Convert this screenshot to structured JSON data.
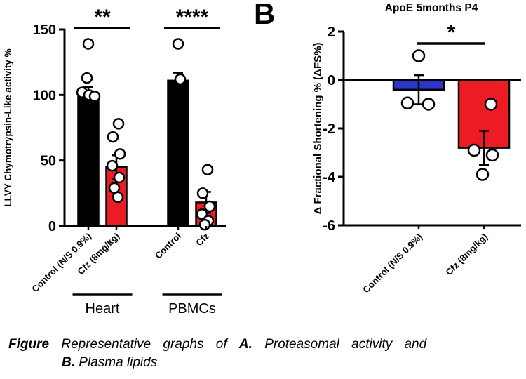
{
  "panel_b_label": "B",
  "colors": {
    "bar_black": "#000000",
    "bar_red": "#ED1C24",
    "bar_blue": "#2B35C8",
    "point_fill": "#FFFFFF",
    "axis": "#000000"
  },
  "caption": {
    "figure_label": "Figure",
    "text1": " Representative graphs of ",
    "a_label": "A.",
    "text2": " Proteasomal activity and",
    "b_label": "B.",
    "text3": " Plasma lipids"
  },
  "chart_data": [
    {
      "id": "proteasomal-activity",
      "type": "bar",
      "title": "",
      "ylabel": "LLVY Chymotrypsin-Like activity %",
      "ylim": [
        0,
        150
      ],
      "yticks": [
        150,
        100,
        50,
        0
      ],
      "categories": [
        "Control (N/S 0.9%)",
        "Cfz (8mg/kg)",
        "Control",
        "Cfz"
      ],
      "values": [
        101,
        45,
        111,
        18
      ],
      "errors": [
        5,
        9,
        6,
        8
      ],
      "bar_colors": [
        "#000000",
        "#ED1C24",
        "#000000",
        "#ED1C24"
      ],
      "points": [
        [
          139,
          113,
          102,
          100,
          99
        ],
        [
          78,
          68,
          55,
          46,
          37,
          29,
          22
        ],
        [
          139,
          112
        ],
        [
          43,
          25,
          15,
          9,
          4,
          1
        ]
      ],
      "groups": [
        {
          "label": "Heart",
          "span": [
            0,
            1
          ]
        },
        {
          "label": "PBMCs",
          "span": [
            2,
            3
          ]
        }
      ],
      "significance": [
        {
          "label": "**",
          "span": [
            0,
            1
          ]
        },
        {
          "label": "****",
          "span": [
            2,
            3
          ]
        }
      ],
      "grid": false,
      "legend": "none"
    },
    {
      "id": "fractional-shortening",
      "type": "bar",
      "title": "ApoE 5months P4",
      "ylabel": "Δ Fractional Shortening % (ΔFS%)",
      "ylim": [
        -6,
        2
      ],
      "yticks": [
        2,
        0,
        -2,
        -4,
        -6
      ],
      "categories": [
        "Control (N/S 0.9%)",
        "Cfz (8mg/kg)"
      ],
      "values": [
        -0.4,
        -2.8
      ],
      "errors": [
        0.6,
        0.7
      ],
      "bar_colors": [
        "#2B35C8",
        "#ED1C24"
      ],
      "points": [
        [
          1.0,
          -0.95,
          -1.0
        ],
        [
          -1.0,
          -2.9,
          -3.1,
          -3.9
        ]
      ],
      "significance": [
        {
          "label": "*",
          "span": [
            0,
            1
          ]
        }
      ],
      "grid": false,
      "legend": "none"
    }
  ]
}
